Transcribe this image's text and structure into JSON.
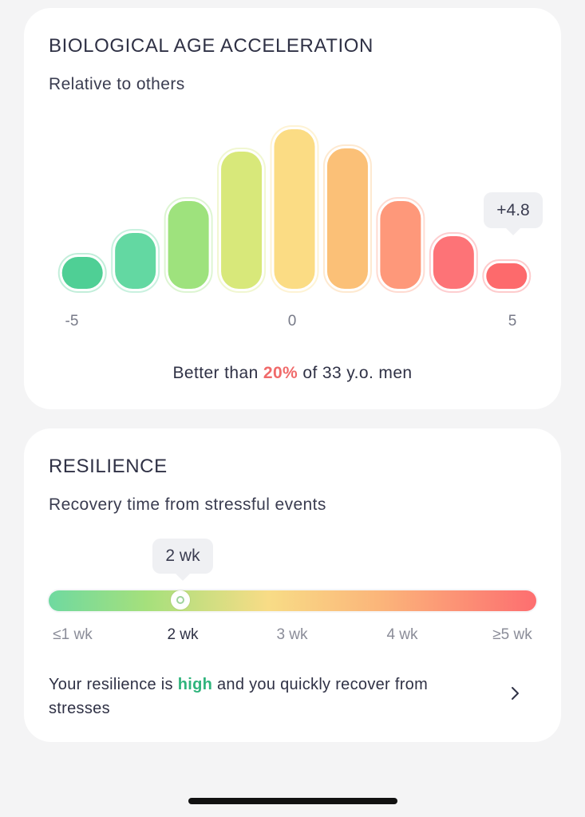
{
  "bio_card": {
    "title": "BIOLOGICAL AGE ACCELERATION",
    "subtitle": "Relative to others",
    "callout": "+4.8",
    "summary_prefix": "Better than ",
    "summary_highlight": "20%",
    "summary_suffix": " of 33 y.o. men",
    "highlight_color": "#f06a6a"
  },
  "chart_data": {
    "type": "bar",
    "title": "",
    "xlabel": "",
    "ylabel": "",
    "x_tick_labels": [
      "-5",
      "0",
      "5"
    ],
    "x_range": [
      -5,
      5
    ],
    "bin_count": 9,
    "values": [
      0.2,
      0.35,
      0.55,
      0.86,
      1.0,
      0.88,
      0.55,
      0.33,
      0.16
    ],
    "colors": [
      "#4fcf95",
      "#63d8a2",
      "#9ee27d",
      "#d8e87a",
      "#fbdc84",
      "#fbc077",
      "#fe987a",
      "#fd7377",
      "#fd6a6c"
    ],
    "highlighted_bin": 8,
    "highlighted_value_label": "+4.8",
    "grid": false,
    "legend": "none"
  },
  "resilience_card": {
    "title": "RESILIENCE",
    "subtitle": "Recovery time from stressful events",
    "callout": "2 wk",
    "current_position": 0.27,
    "scale_labels": [
      "≤1 wk",
      "2 wk",
      "3 wk",
      "4 wk",
      "≥5 wk"
    ],
    "active_label_index": 1,
    "text_prefix": "Your resilience is ",
    "text_highlight": "high",
    "text_suffix": " and you quickly recover from stresses",
    "highlight_color": "#2fb47c"
  },
  "icons": {
    "chevron": "chevron-right-icon"
  }
}
